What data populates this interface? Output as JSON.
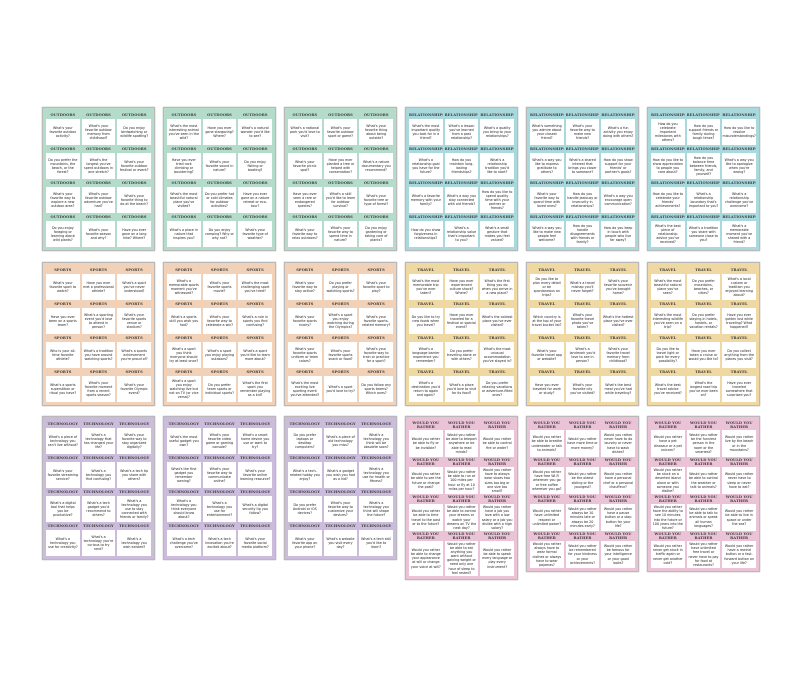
{
  "category_colors": {
    "OUTDOORS": "#b5dccb",
    "RELATIONSHIPS": "#a9d9dd",
    "SPORTS": "#f1d2b8",
    "TRAVEL": "#efd8a2",
    "TECHNOLOGY": "#cbbcdb",
    "WOULD YOU RATHER": "#ebc3d6"
  },
  "sheets": [
    {
      "category": "OUTDOORS",
      "cards": [
        "What's your favorite outdoor activity?",
        "What's your favorite outdoor memory from childhood?",
        "Do you enjoy birdwatching or wildlife spotting?",
        "Do you prefer the mountains, the beach, or the forest?",
        "What's the longest you've spent outdoors in one stretch?",
        "What's your favorite outdoor festival or event?",
        "What's your favorite way to explore a new outdoor area?",
        "What's your favorite outdoor adventure you've had?",
        "What's your favorite thing to do at the beach?",
        "Do you enjoy foraging or learning about wild plants?",
        "What's your favorite season and why?",
        "Have you ever gone on a long hike? Where?"
      ]
    },
    {
      "category": "OUTDOORS",
      "cards": [
        "What's the most interesting animal you've seen in the wild?",
        "Have you ever gone stargazing? Where?",
        "What's a natural wonder you'd like to see?",
        "Have you ever tried rock climbing or bouldering?",
        "What's your favorite sound in nature?",
        "Do you enjoy fishing or boating?",
        "What's the most beautiful natural place you've visited?",
        "Do you prefer hot or cold climates for outdoor activities?",
        "Have you ever gone on a nature retreat or eco-tour?",
        "What's a place in nature that inspires you?",
        "Do you enjoy camping? Why or why not?",
        "What's your favorite type of weather?"
      ]
    },
    {
      "category": "OUTDOORS",
      "cards": [
        "What's a national park you'd love to visit?",
        "What's your favorite outdoor sport or game?",
        "What's your favorite thing about being outside?",
        "What's your favorite picnic spot?",
        "Have you ever planted a tree or helped with conservation?",
        "What's a nature documentary you recommend?",
        "Have you ever seen a rare or endangered species?",
        "What's a skill you'd like to learn for outdoor survival?",
        "What's your favorite tree or type of forest?",
        "What's your favorite way to relax outdoors?",
        "What's your favorite way to spend time in nature?",
        "Do you enjoy gardening or taking care of plants?"
      ]
    },
    {
      "category": "RELATIONSHIPS",
      "cards": [
        "What's the most important quality you look for in a friend?",
        "What's a lesson you've learned from a past relationship?",
        "What's a quality you bring to your relationships?",
        "What's a relationship goal you have for the future?",
        "How do you maintain long-lasting friendships?",
        "What's a relationship tradition you'd like to start?",
        "What's a favorite memory with your family?",
        "What's a way you stay connected with old friends?",
        "How do you like to spend quality time with your partner or friends?",
        "How do you show forgiveness in relationships?",
        "What's a relationship value that's important to you?",
        "What's a small gesture that makes you feel valued?"
      ]
    },
    {
      "category": "RELATIONSHIPS",
      "cards": [
        "What's something you admire about your closest friend?",
        "What's your favorite way to make new friends?",
        "What's a fun activity you enjoy doing with others?",
        "What's a way you like to express gratitude to others?",
        "What's a shared interest that brings you closer to someone?",
        "How do you show support for your friends' or partner's goals?",
        "What's your favorite way to spend time with loved ones?",
        "How do you handle jealousy or insecurity in relationships?",
        "What's a way you encourage open communication?",
        "What's a way you like to make new people feel welcome?",
        "How do you handle disagreements with friends or family?",
        "How do you keep in touch with people who live far away?"
      ]
    },
    {
      "category": "RELATIONSHIPS",
      "cards": [
        "How do you celebrate important milestones with others?",
        "How do you support friends or family during tough times?",
        "How do you like to resolve misunderstandings?",
        "How do you like to show appreciation to people you care about?",
        "How do you balance time between friends, family, and yourself?",
        "What's a way you like to apologize when you're wrong?",
        "How do you like to celebrate your friends' achievements?",
        "What's a relationship boundary that's important to you?",
        "What's a relationship challenge you've overcome?",
        "What's the best piece of relationship advice you've received?",
        "What's a tradition you share with someone close to you?",
        "What's a memorable moment you've shared with a friend?"
      ]
    },
    {
      "category": "SPORTS",
      "cards": [
        "What's your favorite sport to watch?",
        "Have you ever met a professional athlete?",
        "What's a sport you've never understood?",
        "Have you ever been on a sports team?",
        "What's a sporting event you'd love to attend in person?",
        "What's your favorite sports venue or stadium?",
        "Who is your all-time favorite athlete?",
        "What's a tradition you have around watching sports?",
        "What's a sports achievement you're proud of?",
        "What's a sports superstition or ritual you have?",
        "What's your favorite moment from a recent sports season?",
        "What's your favorite Olympic event?"
      ]
    },
    {
      "category": "SPORTS",
      "cards": [
        "What's a memorable sports moment you've witnessed?",
        "What's your favorite sports movie?",
        "What's the most challenging sport you've tried?",
        "What's a sports skill you wish you had?",
        "What's your favorite way to celebrate a win?",
        "What's a rule in sports you find confusing?",
        "What's a sport you think everyone should try at least once?",
        "What's a sport you enjoy playing outdoors?",
        "What's a sport you'd like to learn more about?",
        "What's a sport you enjoy watching live but not on TV (or vice versa)?",
        "Do you prefer team sports or individual sports?",
        "What's the first sport you remember playing as a kid?"
      ]
    },
    {
      "category": "SPORTS",
      "cards": [
        "What's your favorite way to stay active?",
        "Do you prefer playing or watching sports?",
        "What's your favorite sport to play?",
        "What's your favorite sports rivalry?",
        "What's a sport you enjoy watching during the Olympics?",
        "What's your favorite sports-related memory?",
        "What's your favorite sports uniform or team colors?",
        "What's your favorite sports snack or food?",
        "What's your favorite way to train or practice for a sport?",
        "What's the most exciting live sporting event you've attended?",
        "What's a sport you'd love to try?",
        "Do you follow any sports teams? Which ones?"
      ]
    },
    {
      "category": "TRAVEL",
      "cards": [
        "What's the most memorable trip you've ever taken?",
        "Have you ever experienced culture shock? Where?",
        "What's the first thing you do when you arrive in a new place?",
        "Do you like to try new foods when you travel?",
        "Have you ever traveled for a festival or special event?",
        "What's the coldest place you've ever visited?",
        "What's a language barrier experience you remember?",
        "Do you prefer traveling alone or with others?",
        "What's the most unusual accommodation you've stayed in?",
        "What's a destination you'd return to again and again?",
        "What's a place you'd love to visit for its food?",
        "Do you prefer relaxing vacations or adventure-filled ones?"
      ]
    },
    {
      "category": "TRAVEL",
      "cards": [
        "Do you like to plan every detail or be spontaneous on trips?",
        "What's a travel mishap you'll never forget?",
        "What's your favorite souvenir you've brought home?",
        "Which country is at the top of your travel bucket list?",
        "What's your favorite travel photo you've taken?",
        "What's the hottest place you've ever visited?",
        "What's your favorite travel app or website?",
        "What's a landmark you'd love to see in person?",
        "What's your favorite travel memory from childhood?",
        "Have you ever traveled for work or study?",
        "What's your favorite city you've visited?",
        "What's the best meal you've had while traveling?"
      ]
    },
    {
      "category": "TRAVEL",
      "cards": [
        "What's the most beautiful natural place you've seen?",
        "Do you prefer mountains, beaches, or cities?",
        "What's a local custom or tradition you enjoyed learning about?",
        "What's the most interesting wildlife you've seen on a trip?",
        "Do you prefer staying in hotels, hostels, or vacation rentals?",
        "Have you ever gotten lost while traveling? What happened?",
        "Do you like to travel light or pack for every possibility?",
        "Have you ever taken a cruise or would you like to?",
        "Do you collect anything from the places you visit?",
        "What's the best travel advice you've received?",
        "What's the longest road trip you've ever been on?",
        "Have you ever traveled somewhere that surprised you?"
      ]
    },
    {
      "category": "TECHNOLOGY",
      "cards": [
        "What's a piece of technology you can't live without?",
        "What's a technology that has changed your life?",
        "What's your favorite way to stay organized digitally?",
        "What's your favorite streaming service?",
        "What's a technology you find confusing?",
        "What's a tech tip you share with others?",
        "What's a digital tool that helps you be productive?",
        "What's a tech gadget you'd recommend to others?",
        "What's a technology you use to stay connected with friends or family?",
        "What's a technology you use for creativity?",
        "What's a technology you're curious to try next?",
        "What's a technology you wish existed?"
      ]
    },
    {
      "category": "TECHNOLOGY",
      "cards": [
        "What's the most useful gadget you own?",
        "What's your favorite video game or gaming console?",
        "What's a smart home device you use or want to try?",
        "What's the first gadget you remember owning?",
        "What's your favorite way to communicate online?",
        "What's your favorite online learning resource?",
        "What's a technology you think everyone should know about?",
        "What's a technology you use for entertainment?",
        "What's a digital security tip you follow?",
        "What's a tech challenge you've overcome?",
        "What's a tech innovation you're excited about?",
        "What's your favorite social media platform?"
      ]
    },
    {
      "category": "TECHNOLOGY",
      "cards": [
        "Do you prefer laptops or desktop computers?",
        "What's a piece of old technology you miss?",
        "What's a technology you think will be obsolete soon?",
        "What's a tech-related hobby you enjoy?",
        "What's a gadget you wish you had as a kid?",
        "What's a technology you use for health or fitness?",
        "Do you prefer Android or iOS devices?",
        "What's your favorite way to customize your devices?",
        "What's a technology you think will shape the future?",
        "What's your favorite app on your phone?",
        "What's a website you visit every day?",
        "What's a tech skill you'd like to learn?"
      ]
    },
    {
      "category": "WOULD YOU RATHER",
      "cards": [
        "Would you rather be able to fly or be invisible?",
        "Would you rather be able to teleport anywhere or be able to read minds?",
        "Would you rather be able to control fire or water?",
        "Would you rather be able to see the future or change the past?",
        "Would you rather be able to run at 100 miles per hour or fly at 10 miles per hour?",
        "Would you rather have to always wear shoes two sizes too big or one size too small?",
        "Would you rather be able to time travel to the past or to the future?",
        "Would you rather be able to control your dreams or watch your dreams on TV the next day?",
        "Would you rather have a job you love with a low salary or a job you dislike with a high salary?",
        "Would you rather be able to change your appearance at will or change your voice at will?",
        "Would you rather be able to eat anything you want without gaining weight or need only one hour of sleep to feel rested?",
        "Would you rather be able to speak every language or play every instrument?"
      ]
    },
    {
      "category": "WOULD YOU RATHER",
      "cards": [
        "Would you rather be able to breathe underwater or talk to animals?",
        "Would you rather have more time or more money?",
        "Would you rather never have to do laundry or never have to wash dishes?",
        "Would you rather have free Wi-Fi wherever you go or free coffee wherever you go?",
        "Would you rather be the oldest sibling or the youngest?",
        "Would you rather have a personal chef or a personal chauffeur?",
        "Would you rather have unlimited respect or unlimited power?",
        "Would you rather always be 10 minutes late or always be 20 minutes early?",
        "Would you rather have a pause button or a stop button for your life?",
        "Would you rather always have to wear formal clothes or always have to wear pajamas?",
        "Would you rather be remembered for your kindness or your achievements?",
        "Would you rather be famous for your intelligence or your good looks?"
      ]
    },
    {
      "category": "WOULD YOU RATHER",
      "cards": [
        "Would you rather have a pet dinosaur or a pet unicorn?",
        "Would you rather be the funniest person in the room or the smartest?",
        "Would you rather live by the beach or in the mountains?",
        "Would you rather be stuck on a deserted island alone or with someone you dislike?",
        "Would you rather be able to control the weather or talk to animals?",
        "Would you rather never have to sleep or never have to eat?",
        "Would you rather have the ability to see 10 minutes into the future or 100 years into the future?",
        "Would you rather be able to talk to animals or speak all human languages?",
        "Would you rather be able to live in space or under the sea?",
        "Would you rather never get stuck in traffic again or never get another cold?",
        "Would you rather have unlimited free travel or never have to pay for food at restaurants?",
        "Would you rather have a rewind button or a fast-forward button on your life?"
      ]
    }
  ]
}
